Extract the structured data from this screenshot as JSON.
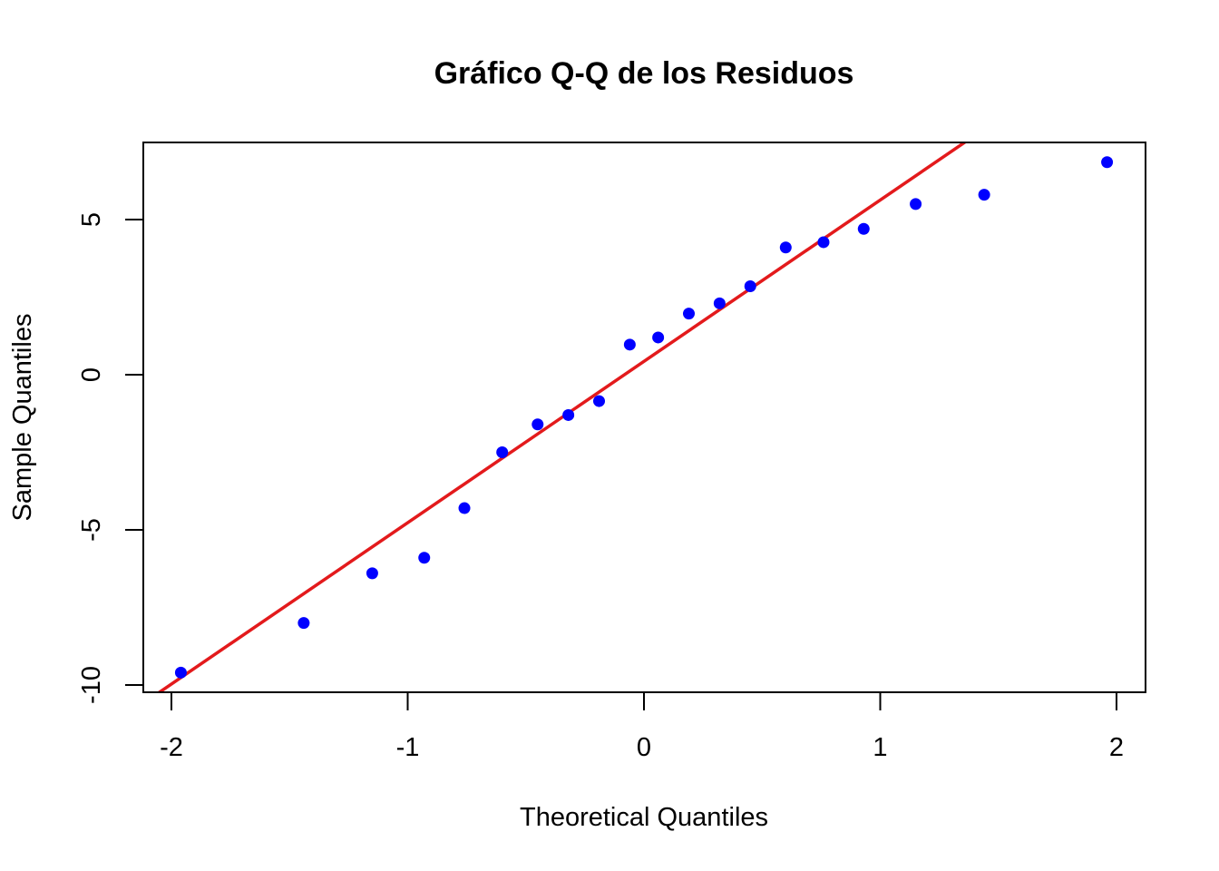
{
  "chart_data": {
    "type": "scatter",
    "title": "Gráfico Q-Q de los Residuos",
    "xlabel": "Theoretical Quantiles",
    "ylabel": "Sample Quantiles",
    "xlim": [
      -2.1,
      2.1
    ],
    "ylim": [
      -10.2,
      7.5
    ],
    "x_ticks": [
      -2,
      -1,
      0,
      1,
      2
    ],
    "x_tick_labels": [
      "-2",
      "-1",
      "0",
      "1",
      "2"
    ],
    "y_ticks": [
      -10,
      -5,
      0,
      5
    ],
    "y_tick_labels": [
      "-10",
      "-5",
      "0",
      "5"
    ],
    "grid": false,
    "point_color": "#0000ff",
    "line_color": "#e31a1c",
    "points": [
      {
        "x": -1.96,
        "y": -9.6
      },
      {
        "x": -1.44,
        "y": -8.0
      },
      {
        "x": -1.15,
        "y": -6.4
      },
      {
        "x": -0.93,
        "y": -5.9
      },
      {
        "x": -0.76,
        "y": -4.3
      },
      {
        "x": -0.6,
        "y": -2.5
      },
      {
        "x": -0.45,
        "y": -1.6
      },
      {
        "x": -0.32,
        "y": -1.3
      },
      {
        "x": -0.19,
        "y": -0.85
      },
      {
        "x": -0.06,
        "y": 0.97
      },
      {
        "x": 0.06,
        "y": 1.2
      },
      {
        "x": 0.19,
        "y": 1.97
      },
      {
        "x": 0.32,
        "y": 2.3
      },
      {
        "x": 0.45,
        "y": 2.85
      },
      {
        "x": 0.6,
        "y": 4.1
      },
      {
        "x": 0.76,
        "y": 4.27
      },
      {
        "x": 0.93,
        "y": 4.7
      },
      {
        "x": 1.15,
        "y": 5.5
      },
      {
        "x": 1.44,
        "y": 5.8
      },
      {
        "x": 1.96,
        "y": 6.85
      }
    ],
    "reference_line": {
      "intercept": 0.43,
      "slope": 5.2
    }
  }
}
